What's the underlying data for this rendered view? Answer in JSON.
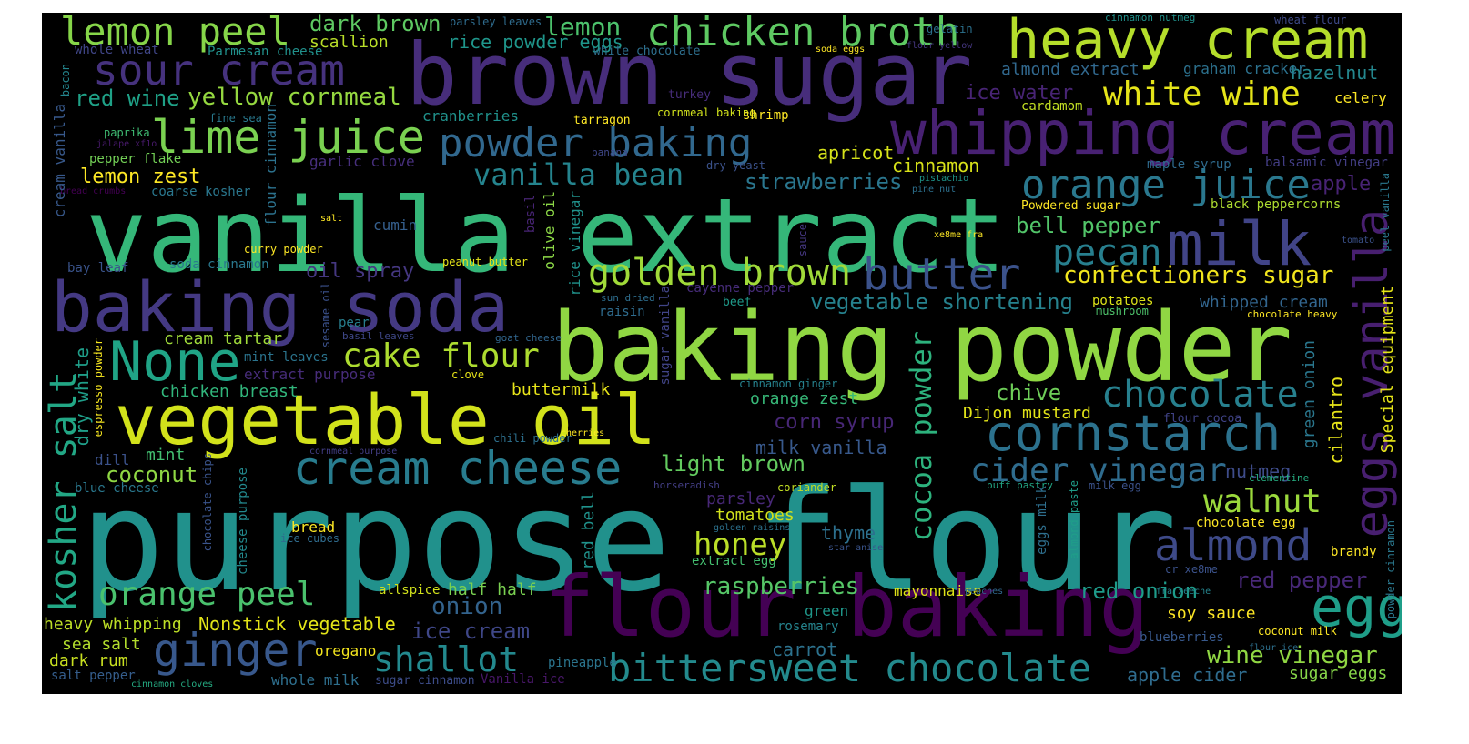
{
  "words": [
    {
      "text": "purpose flour",
      "color": "#21918c"
    },
    {
      "text": "vanilla extract",
      "color": "#35b779"
    },
    {
      "text": "baking powder",
      "color": "#90d743"
    },
    {
      "text": "brown sugar",
      "color": "#472d7b"
    },
    {
      "text": "baking soda",
      "color": "#443983"
    },
    {
      "text": "vegetable oil",
      "color": "#d2e21b"
    },
    {
      "text": "flour baking",
      "color": "#440154"
    },
    {
      "text": "heavy cream",
      "color": "#b5de2b"
    },
    {
      "text": "whipping cream",
      "color": "#482173"
    },
    {
      "text": "cornstarch",
      "color": "#2c728e"
    },
    {
      "text": "chicken broth",
      "color": "#5ec962"
    },
    {
      "text": "lime juice",
      "color": "#7ad151"
    },
    {
      "text": "cream cheese",
      "color": "#287c8e"
    },
    {
      "text": "powder baking",
      "color": "#31688e"
    },
    {
      "text": "milk",
      "color": "#414487"
    },
    {
      "text": "egg",
      "color": "#1f9e89"
    },
    {
      "text": "None",
      "color": "#20a486"
    },
    {
      "text": "butter",
      "color": "#3b528b"
    },
    {
      "text": "ginger",
      "color": "#38588c"
    },
    {
      "text": "bittersweet chocolate",
      "color": "#238a8d"
    },
    {
      "text": "orange juice",
      "color": "#2a788e"
    },
    {
      "text": "lemon peel",
      "color": "#86d549"
    },
    {
      "text": "sour cream",
      "color": "#46327e"
    },
    {
      "text": "golden brown",
      "color": "#a0da39"
    },
    {
      "text": "eggs vanilla",
      "color": "#481f70"
    },
    {
      "text": "almond",
      "color": "#3e4a89"
    },
    {
      "text": "chocolate",
      "color": "#27808e"
    },
    {
      "text": "kosher salt",
      "color": "#22a785"
    },
    {
      "text": "cake flour",
      "color": "#addc30"
    },
    {
      "text": "orange peel",
      "color": "#4ac16d"
    },
    {
      "text": "cider vinegar",
      "color": "#2f6c8e"
    },
    {
      "text": "cocoa powder",
      "color": "#2db27d"
    },
    {
      "text": "vanilla bean",
      "color": "#25848e"
    },
    {
      "text": "pecan",
      "color": "#277f8e"
    },
    {
      "text": "white wine",
      "color": "#e5e419"
    },
    {
      "text": "shallot",
      "color": "#23898e"
    },
    {
      "text": "honey",
      "color": "#bade28"
    },
    {
      "text": "walnut",
      "color": "#9bd93c"
    },
    {
      "text": "confectioners sugar",
      "color": "#f1e51d"
    },
    {
      "text": "vegetable shortening",
      "color": "#26828e"
    },
    {
      "text": "yellow cornmeal",
      "color": "#95d840"
    },
    {
      "text": "red wine",
      "color": "#1fa187"
    },
    {
      "text": "raspberries",
      "color": "#56c667"
    },
    {
      "text": "strawberries",
      "color": "#2a768e"
    },
    {
      "text": "bell pepper",
      "color": "#52c569"
    },
    {
      "text": "light brown",
      "color": "#63cb5f"
    },
    {
      "text": "onion",
      "color": "#33638d"
    },
    {
      "text": "red onion",
      "color": "#1e9b8a"
    },
    {
      "text": "wine vinegar",
      "color": "#90d743"
    },
    {
      "text": "ice cream",
      "color": "#3f4788"
    },
    {
      "text": "red pepper",
      "color": "#482878"
    },
    {
      "text": "coconut",
      "color": "#8fd744"
    },
    {
      "text": "dark brown",
      "color": "#5ec962"
    },
    {
      "text": "lemon",
      "color": "#4cc26c"
    },
    {
      "text": "scallion",
      "color": "#b8de29"
    },
    {
      "text": "rice powder eggs",
      "color": "#1f968b"
    },
    {
      "text": "almond extract",
      "color": "#31688e"
    },
    {
      "text": "hazelnut",
      "color": "#24878e"
    },
    {
      "text": "graham cracker",
      "color": "#2c718e"
    },
    {
      "text": "ice water",
      "color": "#482475"
    },
    {
      "text": "cardamom",
      "color": "#c2df23"
    },
    {
      "text": "celery",
      "color": "#fde725"
    },
    {
      "text": "apple",
      "color": "#482374"
    },
    {
      "text": "black peppercorns",
      "color": "#addc30"
    },
    {
      "text": "balsamic vinegar",
      "color": "#433e85"
    },
    {
      "text": "maple syrup",
      "color": "#2f6b8e"
    },
    {
      "text": "cinnamon",
      "color": "#d8e219"
    },
    {
      "text": "apricot",
      "color": "#d5e21a"
    },
    {
      "text": "Powdered sugar",
      "color": "#fde725"
    },
    {
      "text": "whipped cream",
      "color": "#32658e"
    },
    {
      "text": "potatoes",
      "color": "#dde318"
    },
    {
      "text": "mushroom",
      "color": "#4ec36b"
    },
    {
      "text": "chocolate heavy",
      "color": "#fde725"
    },
    {
      "text": "chive",
      "color": "#6ece58"
    },
    {
      "text": "Dijon mustard",
      "color": "#e2e418"
    },
    {
      "text": "corn syrup",
      "color": "#482777"
    },
    {
      "text": "milk vanilla",
      "color": "#38598c"
    },
    {
      "text": "orange zest",
      "color": "#37b878"
    },
    {
      "text": "nutmeg",
      "color": "#3e4c8a"
    },
    {
      "text": "cilantro",
      "color": "#e7e419"
    },
    {
      "text": "green onion",
      "color": "#2a778e"
    },
    {
      "text": "flour cocoa",
      "color": "#404387"
    },
    {
      "text": "Special equipment",
      "color": "#e5e419"
    },
    {
      "text": "lemon zest",
      "color": "#fde725"
    },
    {
      "text": "buttermilk",
      "color": "#e7e419"
    },
    {
      "text": "thyme",
      "color": "#2d708e"
    },
    {
      "text": "tomatoes",
      "color": "#d0e11c"
    },
    {
      "text": "parsley",
      "color": "#482878"
    },
    {
      "text": "mint",
      "color": "#43bf71"
    },
    {
      "text": "dill",
      "color": "#3b528b"
    },
    {
      "text": "dry white",
      "color": "#1f9e89"
    },
    {
      "text": "cream tartar",
      "color": "#9fda3a"
    },
    {
      "text": "chicken breast",
      "color": "#31b57b"
    },
    {
      "text": "extract purpose",
      "color": "#472c7a"
    },
    {
      "text": "mint leaves",
      "color": "#2b748e"
    },
    {
      "text": "oil spray",
      "color": "#453781"
    },
    {
      "text": "cranberries",
      "color": "#20928c"
    },
    {
      "text": "garlic clove",
      "color": "#472f7d"
    },
    {
      "text": "cumin",
      "color": "#355f8d"
    },
    {
      "text": "curry powder",
      "color": "#fde725"
    },
    {
      "text": "soda cinnamon",
      "color": "#2a788e"
    },
    {
      "text": "bay leaf",
      "color": "#3a548c"
    },
    {
      "text": "pepper flake",
      "color": "#73d056"
    },
    {
      "text": "paprika",
      "color": "#3fbc73"
    },
    {
      "text": "coarse kosher",
      "color": "#2a778e"
    },
    {
      "text": "whole wheat",
      "color": "#404688"
    },
    {
      "text": "Parmesan cheese",
      "color": "#21918c"
    },
    {
      "text": "bacon",
      "color": "#24868e"
    },
    {
      "text": "fine sea",
      "color": "#29798e"
    },
    {
      "text": "jalape xf1o",
      "color": "#481a6c"
    },
    {
      "text": "bread crumbs",
      "color": "#440154"
    },
    {
      "text": "cream vanilla",
      "color": "#38598c"
    },
    {
      "text": "flour cinnamon",
      "color": "#2c728e"
    },
    {
      "text": "heavy whipping",
      "color": "#bddf26"
    },
    {
      "text": "Nonstick vegetable",
      "color": "#e3e418"
    },
    {
      "text": "half half",
      "color": "#7ad151"
    },
    {
      "text": "sea salt",
      "color": "#b2dd2d"
    },
    {
      "text": "dark rum",
      "color": "#c8e020"
    },
    {
      "text": "salt pepper",
      "color": "#355e8d"
    },
    {
      "text": "oregano",
      "color": "#f4e61e"
    },
    {
      "text": "whole milk",
      "color": "#2e6f8e"
    },
    {
      "text": "sugar cinnamon",
      "color": "#3d4d8a"
    },
    {
      "text": "Vanilla ice",
      "color": "#481769"
    },
    {
      "text": "pineapple",
      "color": "#2b758e"
    },
    {
      "text": "cinnamon cloves",
      "color": "#25ab82"
    },
    {
      "text": "carrot",
      "color": "#2c728e"
    },
    {
      "text": "rosemary",
      "color": "#25848e"
    },
    {
      "text": "green",
      "color": "#1f988b"
    },
    {
      "text": "mayonnaise",
      "color": "#dfe318"
    },
    {
      "text": "allspice",
      "color": "#d2e21b"
    },
    {
      "text": "bread",
      "color": "#fde725"
    },
    {
      "text": "ice cubes",
      "color": "#2f6c8e"
    },
    {
      "text": "blue cheese",
      "color": "#2a788e"
    },
    {
      "text": "chocolate chips",
      "color": "#3a548c"
    },
    {
      "text": "cheese purpose",
      "color": "#23898e"
    },
    {
      "text": "espresso powder",
      "color": "#f6e620"
    },
    {
      "text": "chili powder",
      "color": "#2d708e"
    },
    {
      "text": "cherries",
      "color": "#fde725"
    },
    {
      "text": "cornmeal purpose",
      "color": "#433e85"
    },
    {
      "text": "clove",
      "color": "#e7e419"
    },
    {
      "text": "goat cheese",
      "color": "#31668e"
    },
    {
      "text": "basil leaves",
      "color": "#3f4889"
    },
    {
      "text": "sesame oil",
      "color": "#3b518b"
    },
    {
      "text": "pear",
      "color": "#277f8e"
    },
    {
      "text": "raisin",
      "color": "#2f6c8e"
    },
    {
      "text": "beef",
      "color": "#1f9a8a"
    },
    {
      "text": "sun dried",
      "color": "#2e6e8e"
    },
    {
      "text": "cayenne pepper",
      "color": "#472c7a"
    },
    {
      "text": "sugar vanilla",
      "color": "#414487"
    },
    {
      "text": "rice vinegar",
      "color": "#20928c"
    },
    {
      "text": "olive oil",
      "color": "#8bd646"
    },
    {
      "text": "basil",
      "color": "#482475"
    },
    {
      "text": "peanut butter",
      "color": "#e5e419"
    },
    {
      "text": "salt",
      "color": "#fde725"
    },
    {
      "text": "sauce",
      "color": "#453781"
    },
    {
      "text": "xe8me fra",
      "color": "#fde725"
    },
    {
      "text": "tomato",
      "color": "#3b528b"
    },
    {
      "text": "peel vanilla",
      "color": "#2a788e"
    },
    {
      "text": "pine nut",
      "color": "#2d708e"
    },
    {
      "text": "pistachio",
      "color": "#1f958b"
    },
    {
      "text": "dry yeast",
      "color": "#3b528b"
    },
    {
      "text": "banana",
      "color": "#3f4788"
    },
    {
      "text": "tarragon",
      "color": "#fde725"
    },
    {
      "text": "cornmeal baking",
      "color": "#d0e11c"
    },
    {
      "text": "shrimp",
      "color": "#fde725"
    },
    {
      "text": "turkey",
      "color": "#472d7b"
    },
    {
      "text": "white chocolate",
      "color": "#2e6f8e"
    },
    {
      "text": "parsley leaves",
      "color": "#2f6c8e"
    },
    {
      "text": "soda eggs",
      "color": "#fde725"
    },
    {
      "text": "flour yellow",
      "color": "#453781"
    },
    {
      "text": "gelatin",
      "color": "#2c718e"
    },
    {
      "text": "cinnamon nutmeg",
      "color": "#20928c"
    },
    {
      "text": "wheat flour",
      "color": "#3e4a89"
    },
    {
      "text": "cinnamon ginger",
      "color": "#26828e"
    },
    {
      "text": "horseradish",
      "color": "#433e85"
    },
    {
      "text": "coriander",
      "color": "#c2df23"
    },
    {
      "text": "golden raisins",
      "color": "#2c728e"
    },
    {
      "text": "star anise",
      "color": "#3a548c"
    },
    {
      "text": "extract egg",
      "color": "#44bf70"
    },
    {
      "text": "red bell",
      "color": "#20928c"
    },
    {
      "text": "eggs milk",
      "color": "#2e6f8e"
    },
    {
      "text": "almond paste",
      "color": "#1f9e89"
    },
    {
      "text": "milk egg",
      "color": "#3b528b"
    },
    {
      "text": "puff pastry",
      "color": "#22a785"
    },
    {
      "text": "clementine",
      "color": "#26ad81"
    },
    {
      "text": "chocolate egg",
      "color": "#fde725"
    },
    {
      "text": "brandy",
      "color": "#fde725"
    },
    {
      "text": "powder cinnamon",
      "color": "#2a788e"
    },
    {
      "text": "cr xe8me",
      "color": "#3b528b"
    },
    {
      "text": "fra xeeche",
      "color": "#25848e"
    },
    {
      "text": "peaches",
      "color": "#31688e"
    },
    {
      "text": "soy sauce",
      "color": "#fde725"
    },
    {
      "text": "coconut milk",
      "color": "#fde725"
    },
    {
      "text": "blueberries",
      "color": "#38598c"
    },
    {
      "text": "flour ice",
      "color": "#2d708e"
    },
    {
      "text": "apple cider",
      "color": "#2f6c8e"
    },
    {
      "text": "sugar eggs",
      "color": "#86d549"
    }
  ]
}
